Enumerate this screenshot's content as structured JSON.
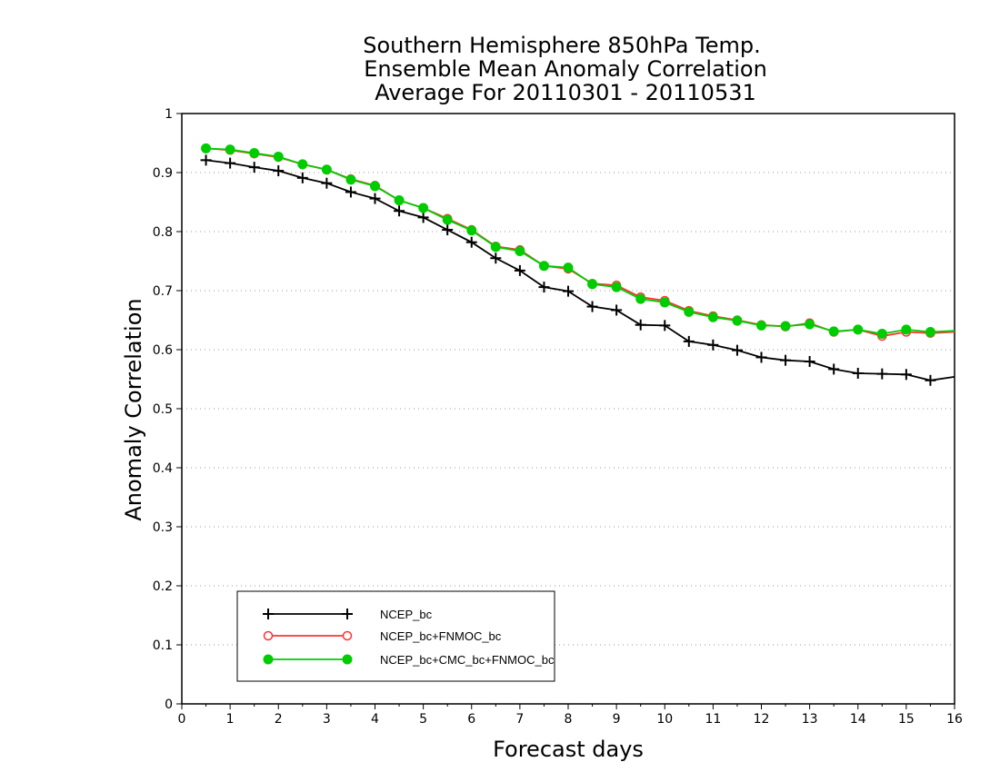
{
  "chart_data": {
    "type": "line",
    "title_lines": [
      "Southern Hemisphere 850hPa Temp.",
      "Ensemble Mean Anomaly Correlation",
      "Average For 20110301 - 20110531"
    ],
    "xlabel": "Forecast days",
    "ylabel": "Anomaly Correlation",
    "xlim": [
      0,
      16
    ],
    "ylim": [
      0,
      1
    ],
    "xticks": [
      "0",
      "1",
      "2",
      "3",
      "4",
      "5",
      "6",
      "7",
      "8",
      "9",
      "10",
      "11",
      "12",
      "13",
      "14",
      "15",
      "16"
    ],
    "yticks": [
      "0",
      "0.1",
      "0.2",
      "0.3",
      "0.4",
      "0.5",
      "0.6",
      "0.7",
      "0.8",
      "0.9",
      "1"
    ],
    "grid": "horizontal dotted",
    "legend_position": "bottom-left",
    "x": [
      0.5,
      1,
      1.5,
      2,
      2.5,
      3,
      3.5,
      4,
      4.5,
      5,
      5.5,
      6,
      6.5,
      7,
      7.5,
      8,
      8.5,
      9,
      9.5,
      10,
      10.5,
      11,
      11.5,
      12,
      12.5,
      13,
      13.5,
      14,
      14.5,
      15,
      15.5,
      16
    ],
    "series": [
      {
        "name": "NCEP_bc",
        "color": "#000000",
        "marker": "plus",
        "values": [
          0.921,
          0.916,
          0.909,
          0.903,
          0.891,
          0.882,
          0.867,
          0.856,
          0.835,
          0.824,
          0.803,
          0.782,
          0.755,
          0.734,
          0.706,
          0.699,
          0.673,
          0.667,
          0.642,
          0.641,
          0.614,
          0.608,
          0.599,
          0.587,
          0.582,
          0.58,
          0.567,
          0.56,
          0.559,
          0.558,
          0.548,
          0.554
        ]
      },
      {
        "name": "NCEP_bc+FNMOC_bc",
        "color": "#ff3333",
        "marker": "open-circle",
        "values": [
          0.941,
          0.938,
          0.932,
          0.926,
          0.914,
          0.905,
          0.889,
          0.878,
          0.853,
          0.84,
          0.822,
          0.803,
          0.775,
          0.769,
          0.742,
          0.737,
          0.712,
          0.709,
          0.689,
          0.683,
          0.666,
          0.657,
          0.65,
          0.642,
          0.639,
          0.645,
          0.63,
          0.634,
          0.623,
          0.63,
          0.628,
          0.63
        ]
      },
      {
        "name": "NCEP_bc+CMC_bc+FNMOC_bc",
        "color": "#00cc00",
        "marker": "filled-circle",
        "values": [
          0.941,
          0.939,
          0.933,
          0.927,
          0.914,
          0.905,
          0.888,
          0.877,
          0.853,
          0.84,
          0.82,
          0.802,
          0.774,
          0.767,
          0.742,
          0.739,
          0.711,
          0.706,
          0.686,
          0.68,
          0.664,
          0.655,
          0.649,
          0.641,
          0.64,
          0.643,
          0.631,
          0.634,
          0.627,
          0.634,
          0.63,
          0.632
        ]
      }
    ]
  }
}
